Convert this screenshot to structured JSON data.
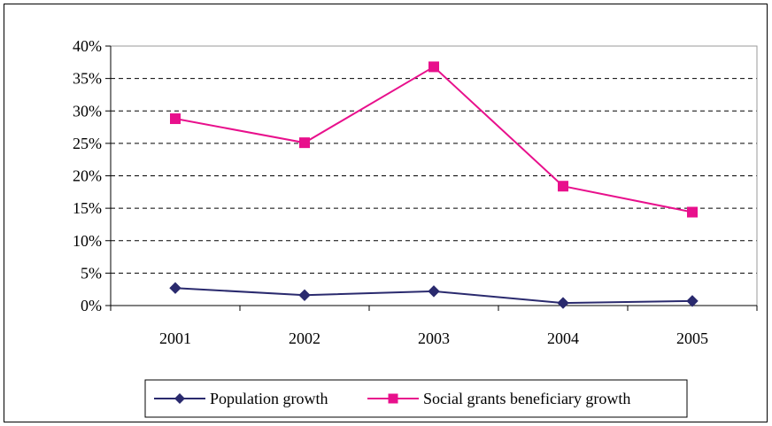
{
  "chart_data": {
    "type": "line",
    "title": "",
    "xlabel": "",
    "ylabel": "",
    "categories": [
      "2001",
      "2002",
      "2003",
      "2004",
      "2005"
    ],
    "ylim": [
      0,
      40
    ],
    "yticks": [
      0,
      5,
      10,
      15,
      20,
      25,
      30,
      35,
      40
    ],
    "ytick_labels": [
      "0%",
      "5%",
      "10%",
      "15%",
      "20%",
      "25%",
      "30%",
      "35%",
      "40%"
    ],
    "grid": "horizontal dashed",
    "legend_position": "bottom",
    "series": [
      {
        "name": "Population growth",
        "values": [
          2.7,
          1.6,
          2.2,
          0.4,
          0.7
        ],
        "color": "#2a2a6e",
        "marker": "diamond"
      },
      {
        "name": "Social grants beneficiary growth",
        "values": [
          28.8,
          25.1,
          36.8,
          18.4,
          14.4
        ],
        "color": "#e8108c",
        "marker": "square"
      }
    ]
  }
}
